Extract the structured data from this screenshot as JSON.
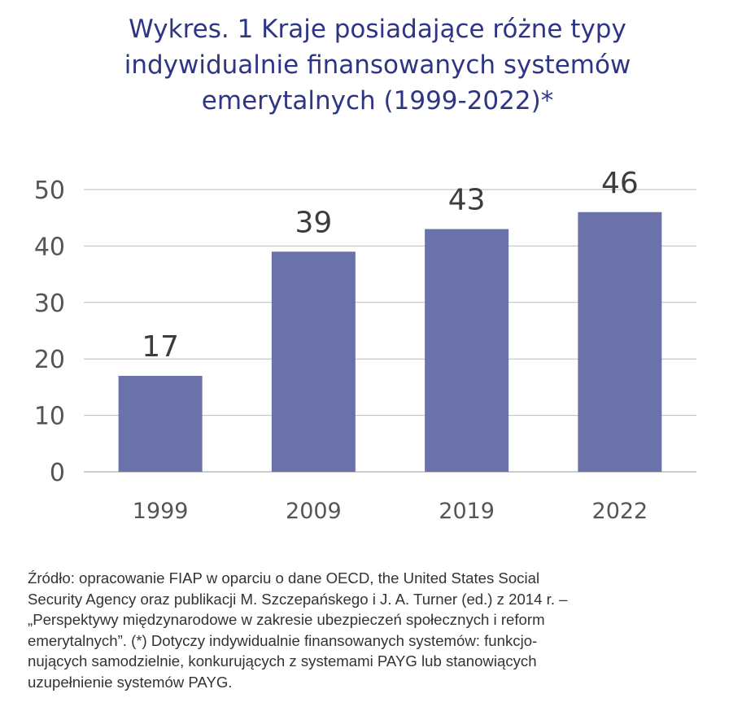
{
  "title_lines": [
    "Wykres. 1 Kraje posiadające różne typy",
    "indywidualnie finansowanych systemów",
    "emerytalnych (1999-2022)*"
  ],
  "chart_data": {
    "type": "bar",
    "title": "Wykres. 1 Kraje posiadające różne typy indywidualnie finansowanych systemów emerytalnych (1999-2022)*",
    "categories": [
      "1999",
      "2009",
      "2019",
      "2022"
    ],
    "values": [
      17,
      39,
      43,
      46
    ],
    "data_labels": [
      "17",
      "39",
      "43",
      "46"
    ],
    "ylim": [
      0,
      50
    ],
    "yticks": [
      0,
      10,
      20,
      30,
      40,
      50
    ],
    "xlabel": "",
    "ylabel": "",
    "grid": true,
    "legend": "none",
    "bar_color": "#6b72aa"
  },
  "footnote_lines": [
    "Źródło: opracowanie FIAP w oparciu o dane OECD, the United States Social",
    "Security Agency oraz publikacji M. Szczepańskego i J. A. Turner (ed.) z 2014 r. –",
    "„Perspektywy międzynarodowe w zakresie ubezpieczeń społecznych i reform",
    "emerytalnych”. (*) Dotyczy indywidualnie finansowanych systemów: funkcjo-",
    "nujących samodzielnie, konkurujących z systemami PAYG lub stanowiących",
    "uzupełnienie systemów PAYG."
  ],
  "colors": {
    "title": "#2f3585",
    "bar": "#6b72aa",
    "text": "#444444",
    "grid": "#bbbbbb"
  }
}
